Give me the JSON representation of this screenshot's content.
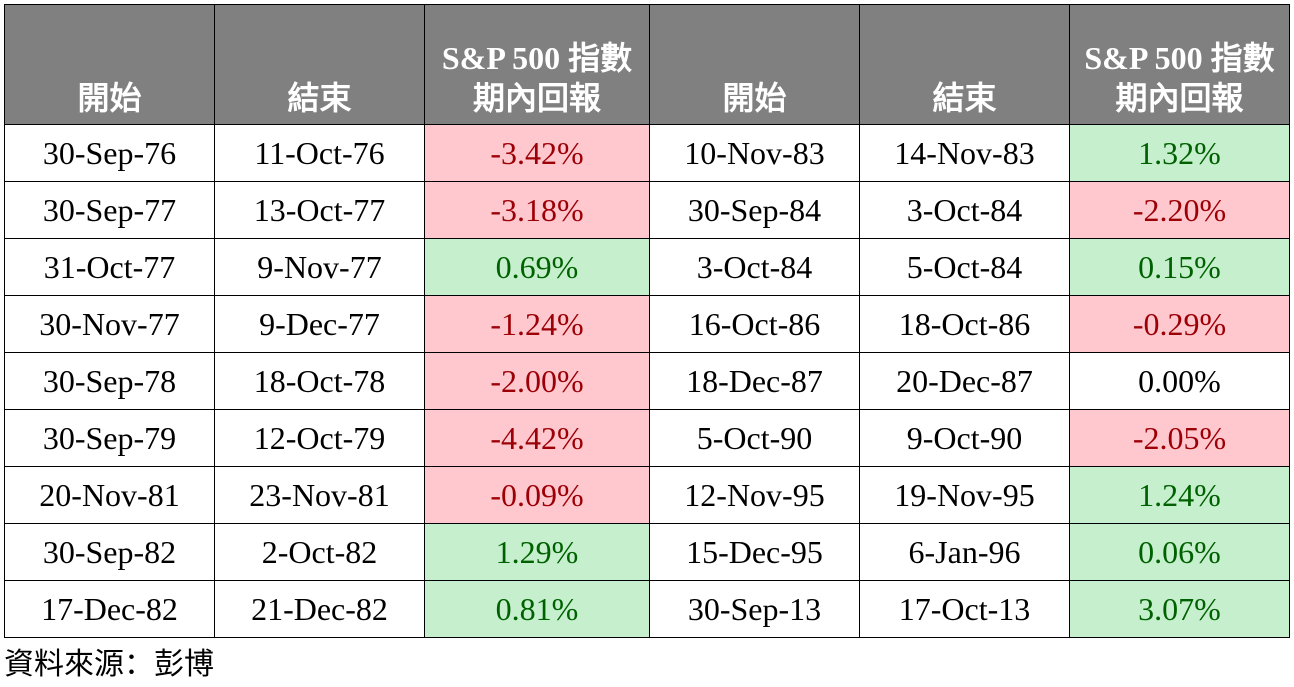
{
  "colors": {
    "header_bg": "#808080",
    "header_text": "#ffffff",
    "negative_bg": "#ffc7ce",
    "negative_text": "#9c0006",
    "positive_bg": "#c6efce",
    "positive_text": "#006100"
  },
  "header": {
    "start": "開始",
    "end": "結束",
    "return_line1": "S&P 500 指數",
    "return_line2": "期內回報"
  },
  "rows": [
    {
      "left": {
        "start": "30-Sep-76",
        "end": "11-Oct-76",
        "ret": "-3.42%",
        "tone": "neg"
      },
      "right": {
        "start": "10-Nov-83",
        "end": "14-Nov-83",
        "ret": "1.32%",
        "tone": "pos"
      }
    },
    {
      "left": {
        "start": "30-Sep-77",
        "end": "13-Oct-77",
        "ret": "-3.18%",
        "tone": "neg"
      },
      "right": {
        "start": "30-Sep-84",
        "end": "3-Oct-84",
        "ret": "-2.20%",
        "tone": "neg"
      }
    },
    {
      "left": {
        "start": "31-Oct-77",
        "end": "9-Nov-77",
        "ret": "0.69%",
        "tone": "pos"
      },
      "right": {
        "start": "3-Oct-84",
        "end": "5-Oct-84",
        "ret": "0.15%",
        "tone": "pos"
      }
    },
    {
      "left": {
        "start": "30-Nov-77",
        "end": "9-Dec-77",
        "ret": "-1.24%",
        "tone": "neg"
      },
      "right": {
        "start": "16-Oct-86",
        "end": "18-Oct-86",
        "ret": "-0.29%",
        "tone": "neg"
      }
    },
    {
      "left": {
        "start": "30-Sep-78",
        "end": "18-Oct-78",
        "ret": "-2.00%",
        "tone": "neg"
      },
      "right": {
        "start": "18-Dec-87",
        "end": "20-Dec-87",
        "ret": "0.00%",
        "tone": "zero"
      }
    },
    {
      "left": {
        "start": "30-Sep-79",
        "end": "12-Oct-79",
        "ret": "-4.42%",
        "tone": "neg"
      },
      "right": {
        "start": "5-Oct-90",
        "end": "9-Oct-90",
        "ret": "-2.05%",
        "tone": "neg"
      }
    },
    {
      "left": {
        "start": "20-Nov-81",
        "end": "23-Nov-81",
        "ret": "-0.09%",
        "tone": "neg"
      },
      "right": {
        "start": "12-Nov-95",
        "end": "19-Nov-95",
        "ret": "1.24%",
        "tone": "pos"
      }
    },
    {
      "left": {
        "start": "30-Sep-82",
        "end": "2-Oct-82",
        "ret": "1.29%",
        "tone": "pos"
      },
      "right": {
        "start": "15-Dec-95",
        "end": "6-Jan-96",
        "ret": "0.06%",
        "tone": "pos"
      }
    },
    {
      "left": {
        "start": "17-Dec-82",
        "end": "21-Dec-82",
        "ret": "0.81%",
        "tone": "pos"
      },
      "right": {
        "start": "30-Sep-13",
        "end": "17-Oct-13",
        "ret": "3.07%",
        "tone": "pos"
      }
    }
  ],
  "source": "資料來源：彭博"
}
